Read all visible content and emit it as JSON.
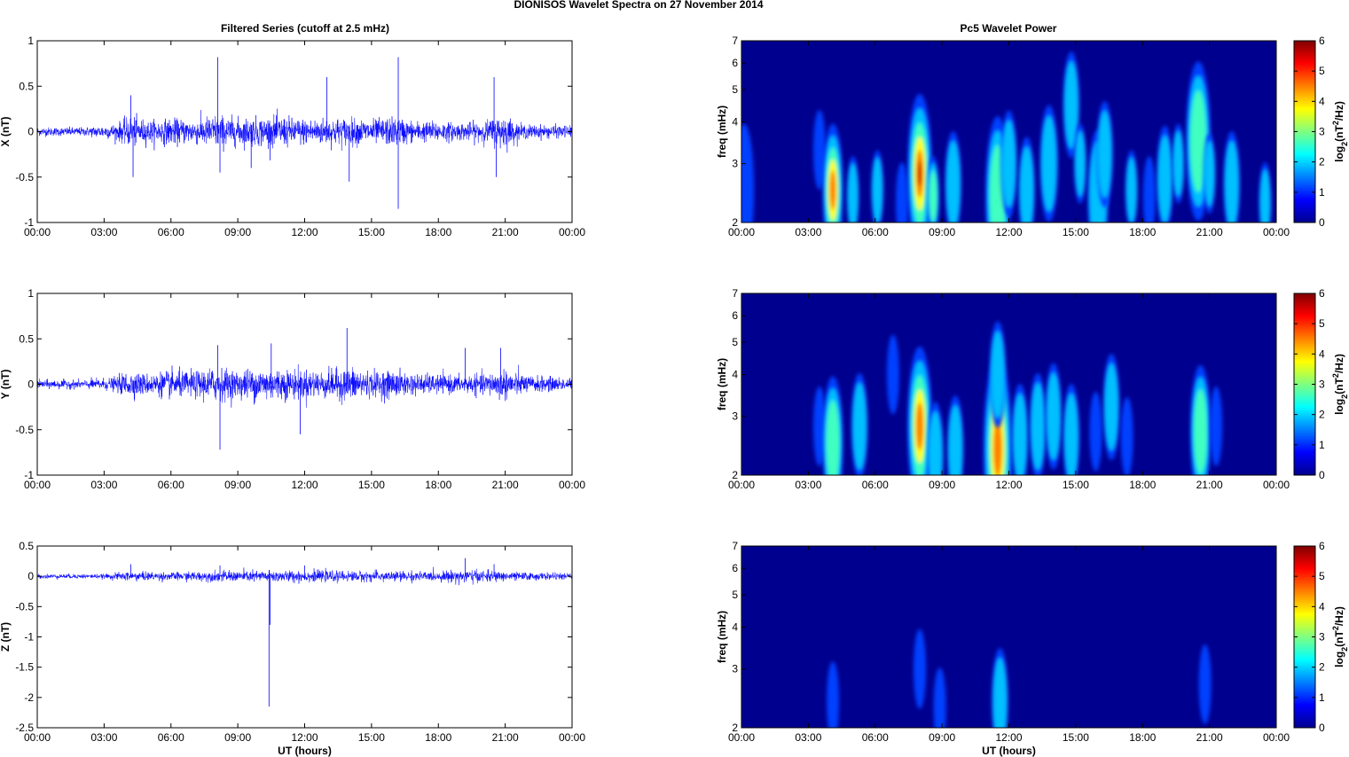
{
  "figure_title": "DIONISOS Wavelet Spectra on 27 November  2014",
  "left_column_title": "Filtered Series (cutoff at 2.5 mHz)",
  "right_column_title": "Pc5 Wavelet Power",
  "bottom_xlabel": "UT (hours)",
  "colorbar_label": "log2(nT2/Hz)",
  "colors": {
    "trace": "#0000ff",
    "background_power": "#00008f"
  },
  "chart_data": [
    {
      "type": "line",
      "name": "X filtered series",
      "ylabel": "X (nT)",
      "x_tick_labels": [
        "00:00",
        "03:00",
        "06:00",
        "09:00",
        "12:00",
        "15:00",
        "18:00",
        "21:00",
        "00:00"
      ],
      "xlim": [
        0,
        24
      ],
      "ylim": [
        -1,
        1
      ],
      "y_ticks": [
        -1,
        -0.5,
        0,
        0.5,
        1
      ],
      "y_tick_labels": [
        "-1",
        "-0.5",
        "0",
        "0.5",
        "1"
      ],
      "noise_envelope": [
        [
          0,
          0.05
        ],
        [
          2,
          0.05
        ],
        [
          3.5,
          0.09
        ],
        [
          4.2,
          0.18
        ],
        [
          5,
          0.13
        ],
        [
          6,
          0.15
        ],
        [
          7,
          0.14
        ],
        [
          8,
          0.2
        ],
        [
          9,
          0.16
        ],
        [
          10,
          0.17
        ],
        [
          11,
          0.18
        ],
        [
          12,
          0.15
        ],
        [
          13,
          0.16
        ],
        [
          14,
          0.16
        ],
        [
          15,
          0.14
        ],
        [
          16,
          0.17
        ],
        [
          17,
          0.12
        ],
        [
          18,
          0.12
        ],
        [
          19,
          0.1
        ],
        [
          20,
          0.12
        ],
        [
          21,
          0.2
        ],
        [
          21.5,
          0.1
        ],
        [
          22,
          0.08
        ],
        [
          24,
          0.07
        ]
      ],
      "spikes": [
        [
          4.2,
          0.4
        ],
        [
          4.3,
          -0.5
        ],
        [
          8.1,
          0.82
        ],
        [
          8.2,
          -0.45
        ],
        [
          9.6,
          -0.4
        ],
        [
          13,
          0.6
        ],
        [
          14,
          -0.55
        ],
        [
          16.2,
          0.82
        ],
        [
          16.2,
          -0.85
        ],
        [
          20.5,
          0.6
        ],
        [
          20.6,
          -0.5
        ],
        [
          24,
          0.35
        ]
      ]
    },
    {
      "type": "line",
      "name": "Y filtered series",
      "ylabel": "Y (nT)",
      "x_tick_labels": [
        "00:00",
        "03:00",
        "06:00",
        "09:00",
        "12:00",
        "15:00",
        "18:00",
        "21:00",
        "00:00"
      ],
      "xlim": [
        0,
        24
      ],
      "ylim": [
        -1,
        1
      ],
      "y_ticks": [
        -1,
        -0.5,
        0,
        0.5,
        1
      ],
      "y_tick_labels": [
        "-1",
        "-0.5",
        "0",
        "0.5",
        "1"
      ],
      "noise_envelope": [
        [
          0,
          0.05
        ],
        [
          2,
          0.05
        ],
        [
          3.5,
          0.08
        ],
        [
          4,
          0.15
        ],
        [
          5,
          0.12
        ],
        [
          6,
          0.16
        ],
        [
          7,
          0.15
        ],
        [
          8,
          0.2
        ],
        [
          9,
          0.16
        ],
        [
          10,
          0.2
        ],
        [
          11,
          0.18
        ],
        [
          12,
          0.17
        ],
        [
          13,
          0.16
        ],
        [
          14,
          0.2
        ],
        [
          15,
          0.15
        ],
        [
          16,
          0.16
        ],
        [
          17,
          0.12
        ],
        [
          18,
          0.11
        ],
        [
          19,
          0.1
        ],
        [
          20,
          0.12
        ],
        [
          21,
          0.18
        ],
        [
          22,
          0.1
        ],
        [
          24,
          0.07
        ]
      ],
      "spikes": [
        [
          8.1,
          0.43
        ],
        [
          8.2,
          -0.72
        ],
        [
          10.5,
          0.45
        ],
        [
          11.8,
          -0.55
        ],
        [
          13.9,
          0.62
        ],
        [
          19.2,
          0.4
        ],
        [
          20.8,
          0.4
        ],
        [
          24,
          -0.3
        ]
      ]
    },
    {
      "type": "line",
      "name": "Z filtered series",
      "ylabel": "Z (nT)",
      "xlabel": "UT (hours)",
      "x_tick_labels": [
        "00:00",
        "03:00",
        "06:00",
        "09:00",
        "12:00",
        "15:00",
        "18:00",
        "21:00",
        "00:00"
      ],
      "xlim": [
        0,
        24
      ],
      "ylim": [
        -2.5,
        0.5
      ],
      "y_ticks": [
        -2.5,
        -2,
        -1.5,
        -1,
        -0.5,
        0,
        0.5
      ],
      "y_tick_labels": [
        "-2.5",
        "-2",
        "-1.5",
        "-1",
        "-0.5",
        "0",
        "0.5"
      ],
      "noise_envelope": [
        [
          0,
          0.04
        ],
        [
          3,
          0.04
        ],
        [
          4,
          0.08
        ],
        [
          6,
          0.07
        ],
        [
          8,
          0.09
        ],
        [
          10,
          0.1
        ],
        [
          12,
          0.1
        ],
        [
          14,
          0.09
        ],
        [
          16,
          0.09
        ],
        [
          18,
          0.08
        ],
        [
          19,
          0.12
        ],
        [
          21,
          0.08
        ],
        [
          24,
          0.05
        ]
      ],
      "spikes": [
        [
          4.2,
          0.2
        ],
        [
          8.2,
          0.18
        ],
        [
          10.4,
          -2.15
        ],
        [
          10.45,
          -0.8
        ],
        [
          12,
          0.18
        ],
        [
          19.2,
          0.3
        ],
        [
          20.5,
          0.2
        ]
      ]
    },
    {
      "type": "heatmap",
      "name": "X wavelet power",
      "ylabel": "freq (mHz)",
      "y_scale": "log",
      "ylim": [
        2,
        7
      ],
      "y_ticks": [
        2,
        3,
        4,
        5,
        6,
        7
      ],
      "x_tick_labels": [
        "00:00",
        "03:00",
        "06:00",
        "09:00",
        "12:00",
        "15:00",
        "18:00",
        "21:00",
        "00:00"
      ],
      "xlim": [
        0,
        24
      ],
      "colorbar": {
        "min": 0,
        "max": 6,
        "ticks": [
          0,
          1,
          2,
          3,
          4,
          5,
          6
        ]
      },
      "blobs": [
        [
          0.1,
          2.5,
          1.2,
          2.5
        ],
        [
          3.5,
          3.3,
          1.5,
          1.5
        ],
        [
          4.1,
          2.5,
          5.3,
          2.5
        ],
        [
          5,
          2.4,
          2.5,
          1.5
        ],
        [
          6.1,
          2.5,
          2,
          1.5
        ],
        [
          7.2,
          2.3,
          1.2,
          1.5
        ],
        [
          8,
          2.8,
          6.2,
          3
        ],
        [
          8.6,
          2.4,
          3,
          1.5
        ],
        [
          9.5,
          2.6,
          2.2,
          2
        ],
        [
          11.5,
          2.4,
          3.8,
          3
        ],
        [
          12,
          3,
          2,
          2
        ],
        [
          12.8,
          2.5,
          2.5,
          2
        ],
        [
          13.8,
          3,
          2.5,
          2.2
        ],
        [
          14.8,
          4.5,
          2.2,
          2
        ],
        [
          15.2,
          3,
          2,
          1.5
        ],
        [
          16,
          2.4,
          2.5,
          2.5
        ],
        [
          16.3,
          3.2,
          2.4,
          2
        ],
        [
          17.5,
          2.5,
          2,
          1.5
        ],
        [
          18.3,
          2.4,
          1.8,
          1.5
        ],
        [
          19,
          2.7,
          2,
          2
        ],
        [
          19.6,
          3,
          2,
          1.5
        ],
        [
          20.5,
          3.5,
          3.8,
          3
        ],
        [
          21,
          2.8,
          2,
          1.5
        ],
        [
          22,
          2.6,
          2.5,
          2
        ],
        [
          23.5,
          2.3,
          2,
          1.5
        ]
      ]
    },
    {
      "type": "heatmap",
      "name": "Y wavelet power",
      "ylabel": "freq (mHz)",
      "y_scale": "log",
      "ylim": [
        2,
        7
      ],
      "y_ticks": [
        2,
        3,
        4,
        5,
        6,
        7
      ],
      "x_tick_labels": [
        "00:00",
        "03:00",
        "06:00",
        "09:00",
        "12:00",
        "15:00",
        "18:00",
        "21:00",
        "00:00"
      ],
      "xlim": [
        0,
        24
      ],
      "colorbar": {
        "min": 0,
        "max": 6,
        "ticks": [
          0,
          1,
          2,
          3,
          4,
          5,
          6
        ]
      },
      "blobs": [
        [
          3.5,
          2.8,
          1.3,
          1.5
        ],
        [
          4.1,
          2.5,
          3.2,
          2.5
        ],
        [
          5.3,
          2.8,
          2.5,
          2
        ],
        [
          6.8,
          4,
          1.2,
          1.5
        ],
        [
          8,
          2.8,
          5.2,
          3
        ],
        [
          8.7,
          2.3,
          2.8,
          2
        ],
        [
          9.6,
          2.4,
          2.5,
          2
        ],
        [
          11.5,
          2.4,
          5.5,
          3.5
        ],
        [
          11.5,
          4,
          2.2,
          2
        ],
        [
          12.5,
          2.6,
          2.5,
          2
        ],
        [
          13.3,
          2.8,
          2.2,
          2
        ],
        [
          14,
          3,
          2,
          2
        ],
        [
          14.8,
          2.6,
          2,
          2
        ],
        [
          15.9,
          2.7,
          1.8,
          1.5
        ],
        [
          16.6,
          3.2,
          2.2,
          2
        ],
        [
          17.3,
          2.6,
          1.3,
          1.5
        ],
        [
          20.6,
          2.7,
          3.2,
          2.5
        ],
        [
          21.3,
          2.8,
          1.5,
          1.5
        ]
      ]
    },
    {
      "type": "heatmap",
      "name": "Z wavelet power",
      "ylabel": "freq (mHz)",
      "xlabel": "UT (hours)",
      "y_scale": "log",
      "ylim": [
        2,
        7
      ],
      "y_ticks": [
        2,
        3,
        4,
        5,
        6,
        7
      ],
      "x_tick_labels": [
        "00:00",
        "03:00",
        "06:00",
        "09:00",
        "12:00",
        "15:00",
        "18:00",
        "21:00",
        "00:00"
      ],
      "xlim": [
        0,
        24
      ],
      "colorbar": {
        "min": 0,
        "max": 6,
        "ticks": [
          0,
          1,
          2,
          3,
          4,
          5,
          6
        ]
      },
      "blobs": [
        [
          4.1,
          2.4,
          1.6,
          1.5
        ],
        [
          8,
          3,
          1.2,
          1.5
        ],
        [
          8.9,
          2.3,
          1,
          1.5
        ],
        [
          11.6,
          2.4,
          2.2,
          2
        ],
        [
          20.8,
          2.7,
          1.4,
          1.5
        ]
      ]
    }
  ]
}
